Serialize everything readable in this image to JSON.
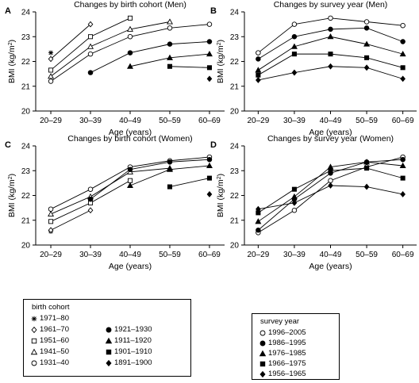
{
  "chart_data": [
    {
      "type": "line",
      "letter": "A",
      "title": "Changes by birth cohort (Men)",
      "xlabel": "Age (years)",
      "ylabel": "BMI (kg/m²)",
      "categories": [
        "20–29",
        "30–39",
        "40–49",
        "50–59",
        "60–69"
      ],
      "ylim": [
        20,
        24
      ],
      "yticks": [
        20,
        21,
        22,
        23,
        24
      ],
      "series": [
        {
          "name": "1971–80",
          "marker": "star",
          "connected": false,
          "values": [
            22.35,
            null,
            null,
            null,
            null
          ]
        },
        {
          "name": "1961–70",
          "marker": "diamond-open",
          "connected": true,
          "values": [
            22.1,
            23.5,
            null,
            null,
            null
          ]
        },
        {
          "name": "1951–60",
          "marker": "square-open",
          "connected": true,
          "values": [
            21.65,
            23.0,
            23.75,
            null,
            null
          ]
        },
        {
          "name": "1941–50",
          "marker": "triangle-open",
          "connected": true,
          "values": [
            21.4,
            22.6,
            23.3,
            23.6,
            null
          ]
        },
        {
          "name": "1931–40",
          "marker": "circle-open",
          "connected": true,
          "values": [
            21.2,
            22.3,
            23.0,
            23.35,
            23.5
          ]
        },
        {
          "name": "1921–1930",
          "marker": "circle-filled",
          "connected": true,
          "values": [
            null,
            21.55,
            22.35,
            22.7,
            22.8
          ]
        },
        {
          "name": "1911–1920",
          "marker": "triangle-filled",
          "connected": true,
          "values": [
            null,
            null,
            21.8,
            22.15,
            22.3
          ]
        },
        {
          "name": "1901–1910",
          "marker": "square-filled",
          "connected": true,
          "values": [
            null,
            null,
            null,
            21.8,
            21.75
          ]
        },
        {
          "name": "1891–1900",
          "marker": "diamond-filled",
          "connected": false,
          "values": [
            null,
            null,
            null,
            null,
            21.3
          ]
        }
      ]
    },
    {
      "type": "line",
      "letter": "B",
      "title": "Changes by survey year (Men)",
      "xlabel": "Age (years)",
      "ylabel": "BMI (kg/m²)",
      "categories": [
        "20–29",
        "30–39",
        "40–49",
        "50–59",
        "60–69"
      ],
      "ylim": [
        20,
        24
      ],
      "yticks": [
        20,
        21,
        22,
        23,
        24
      ],
      "series": [
        {
          "name": "1996–2005",
          "marker": "circle-open",
          "connected": true,
          "values": [
            22.35,
            23.5,
            23.75,
            23.6,
            23.45
          ]
        },
        {
          "name": "1986–1995",
          "marker": "circle-filled",
          "connected": true,
          "values": [
            22.1,
            23.0,
            23.3,
            23.35,
            22.8
          ]
        },
        {
          "name": "1976–1985",
          "marker": "triangle-filled",
          "connected": true,
          "values": [
            21.65,
            22.6,
            23.0,
            22.7,
            22.3
          ]
        },
        {
          "name": "1966–1975",
          "marker": "square-filled",
          "connected": true,
          "values": [
            21.45,
            22.3,
            22.3,
            22.15,
            21.75
          ]
        },
        {
          "name": "1956–1965",
          "marker": "diamond-filled",
          "connected": true,
          "values": [
            21.25,
            21.55,
            21.8,
            21.75,
            21.3
          ]
        }
      ]
    },
    {
      "type": "line",
      "letter": "C",
      "title": "Changes by birth cohort (Women)",
      "xlabel": "Age (years)",
      "ylabel": "BMI (kg/m²)",
      "categories": [
        "20–29",
        "30–39",
        "40–49",
        "50–59",
        "60–69"
      ],
      "ylim": [
        20,
        24
      ],
      "yticks": [
        20,
        21,
        22,
        23,
        24
      ],
      "series": [
        {
          "name": "1971–80",
          "marker": "star",
          "connected": false,
          "values": [
            20.55,
            null,
            null,
            null,
            null
          ]
        },
        {
          "name": "1961–70",
          "marker": "diamond-open",
          "connected": true,
          "values": [
            20.6,
            21.4,
            null,
            null,
            null
          ]
        },
        {
          "name": "1951–60",
          "marker": "square-open",
          "connected": true,
          "values": [
            20.95,
            21.7,
            22.6,
            null,
            null
          ]
        },
        {
          "name": "1941–50",
          "marker": "triangle-open",
          "connected": true,
          "values": [
            21.25,
            21.95,
            22.95,
            23.1,
            null
          ]
        },
        {
          "name": "1931–40",
          "marker": "circle-open",
          "connected": true,
          "values": [
            21.45,
            22.25,
            23.15,
            23.4,
            23.55
          ]
        },
        {
          "name": "1921–1930",
          "marker": "circle-filled",
          "connected": true,
          "values": [
            null,
            21.85,
            23.05,
            23.35,
            23.45
          ]
        },
        {
          "name": "1911–1920",
          "marker": "triangle-filled",
          "connected": true,
          "values": [
            null,
            null,
            22.4,
            23.05,
            23.2
          ]
        },
        {
          "name": "1901–1910",
          "marker": "square-filled",
          "connected": true,
          "values": [
            null,
            null,
            null,
            22.35,
            22.7
          ]
        },
        {
          "name": "1891–1900",
          "marker": "diamond-filled",
          "connected": false,
          "values": [
            null,
            null,
            null,
            null,
            22.05
          ]
        }
      ]
    },
    {
      "type": "line",
      "letter": "D",
      "title": "Changes by survey year (Women)",
      "xlabel": "Age (years)",
      "ylabel": "BMI (kg/m²)",
      "categories": [
        "20–29",
        "30–39",
        "40–49",
        "50–59",
        "60–69"
      ],
      "ylim": [
        20,
        24
      ],
      "yticks": [
        20,
        21,
        22,
        23,
        24
      ],
      "series": [
        {
          "name": "1996–2005",
          "marker": "circle-open",
          "connected": true,
          "values": [
            20.5,
            21.4,
            22.6,
            23.15,
            23.55
          ]
        },
        {
          "name": "1986–1995",
          "marker": "circle-filled",
          "connected": true,
          "values": [
            20.6,
            21.85,
            22.9,
            23.35,
            23.45
          ]
        },
        {
          "name": "1976–1985",
          "marker": "triangle-filled",
          "connected": true,
          "values": [
            20.95,
            21.95,
            23.15,
            23.35,
            23.2
          ]
        },
        {
          "name": "1966–1975",
          "marker": "square-filled",
          "connected": true,
          "values": [
            21.3,
            22.25,
            23.0,
            23.1,
            22.7
          ]
        },
        {
          "name": "1956–1965",
          "marker": "diamond-filled",
          "connected": true,
          "values": [
            21.45,
            21.7,
            22.4,
            22.35,
            22.05
          ]
        }
      ]
    }
  ],
  "legends": {
    "cohort": {
      "title": "birth cohort",
      "items": [
        {
          "label": "1971–80",
          "marker": "star"
        },
        {
          "label": "1961–70",
          "marker": "diamond-open"
        },
        {
          "label": "1951–60",
          "marker": "square-open"
        },
        {
          "label": "1941–50",
          "marker": "triangle-open"
        },
        {
          "label": "1931–40",
          "marker": "circle-open"
        },
        {
          "label": "1921–1930",
          "marker": "circle-filled"
        },
        {
          "label": "1911–1920",
          "marker": "triangle-filled"
        },
        {
          "label": "1901–1910",
          "marker": "square-filled"
        },
        {
          "label": "1891–1900",
          "marker": "diamond-filled"
        }
      ]
    },
    "survey": {
      "title": "survey year",
      "items": [
        {
          "label": "1996–2005",
          "marker": "circle-open"
        },
        {
          "label": "1986–1995",
          "marker": "circle-filled"
        },
        {
          "label": "1976–1985",
          "marker": "triangle-filled"
        },
        {
          "label": "1966–1975",
          "marker": "square-filled"
        },
        {
          "label": "1956–1965",
          "marker": "diamond-filled"
        }
      ]
    }
  }
}
